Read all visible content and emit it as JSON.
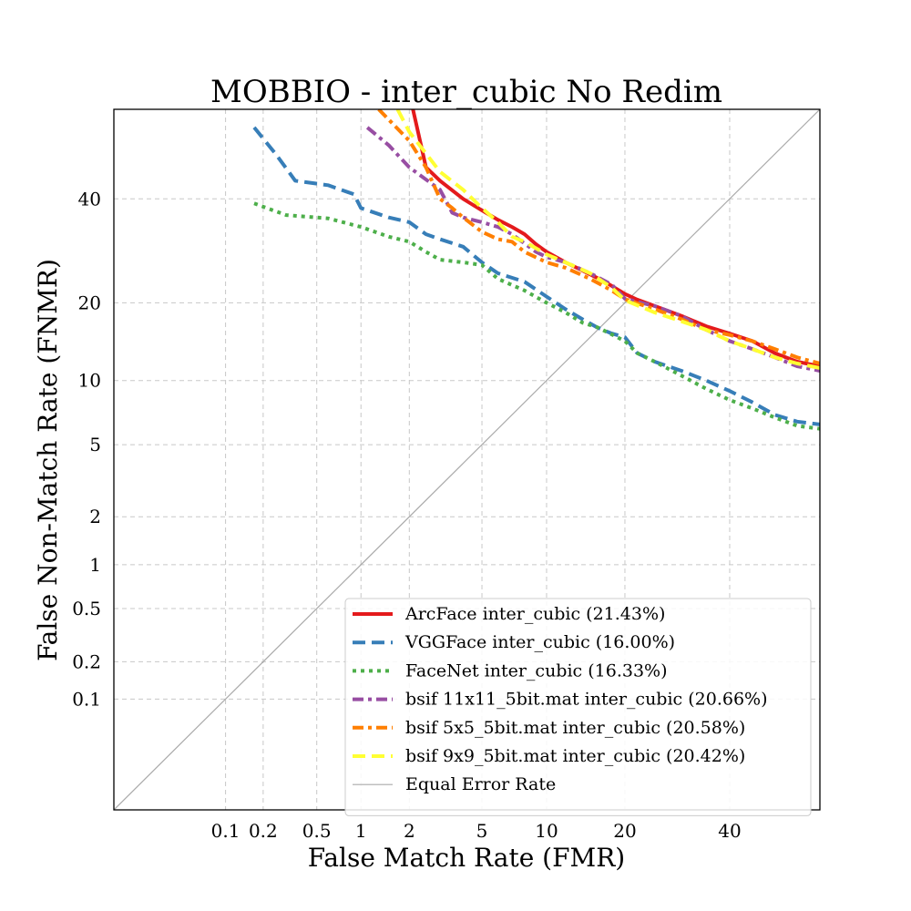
{
  "chart_data": {
    "type": "line",
    "title": "MOBBIO - inter_cubic No Redim",
    "xlabel": "False Match Rate (FMR)",
    "ylabel": "False Non-Match Rate (FNMR)",
    "x_scale": "probit",
    "y_scale": "probit",
    "xlim": [
      0.01,
      60
    ],
    "ylim": [
      0.01,
      60
    ],
    "x_ticks": [
      0.1,
      0.2,
      0.5,
      1,
      2,
      5,
      10,
      20,
      40
    ],
    "x_tick_labels": [
      "0.1",
      "0.2",
      "0.5",
      "1",
      "2",
      "5",
      "10",
      "20",
      "40"
    ],
    "y_ticks": [
      0.1,
      0.2,
      0.5,
      1,
      2,
      5,
      10,
      20,
      40
    ],
    "y_tick_labels": [
      "0.1",
      "0.2",
      "0.5",
      "1",
      "2",
      "5",
      "10",
      "20",
      "40"
    ],
    "grid": true,
    "legend_position": "lower-right",
    "series": [
      {
        "name": "ArcFace inter_cubic (21.43%)",
        "color": "#e41a1c",
        "style": "solid",
        "points": [
          [
            2.1,
            60
          ],
          [
            2.5,
            47
          ],
          [
            3,
            44
          ],
          [
            4,
            40
          ],
          [
            5,
            37.5
          ],
          [
            6,
            35.5
          ],
          [
            7,
            34
          ],
          [
            8,
            32.5
          ],
          [
            9,
            30.5
          ],
          [
            10,
            29
          ],
          [
            12,
            27
          ],
          [
            14,
            25.5
          ],
          [
            17,
            23.5
          ],
          [
            20,
            21.43
          ],
          [
            22,
            20.5
          ],
          [
            25,
            19.5
          ],
          [
            30,
            18
          ],
          [
            35,
            16.5
          ],
          [
            40,
            15.5
          ],
          [
            45,
            14.5
          ],
          [
            50,
            13
          ],
          [
            55,
            12
          ],
          [
            60,
            11.5
          ]
        ]
      },
      {
        "name": "VGGFace inter_cubic (16.00%)",
        "color": "#377eb8",
        "style": "dashed",
        "points": [
          [
            0.17,
            56
          ],
          [
            0.25,
            50
          ],
          [
            0.35,
            44
          ],
          [
            0.6,
            43
          ],
          [
            0.9,
            41
          ],
          [
            1,
            38
          ],
          [
            1.5,
            36
          ],
          [
            2,
            35
          ],
          [
            2.5,
            32.5
          ],
          [
            3,
            31.5
          ],
          [
            4,
            30
          ],
          [
            5,
            27
          ],
          [
            6,
            25
          ],
          [
            8,
            23.5
          ],
          [
            10,
            21
          ],
          [
            12,
            19
          ],
          [
            14,
            17.5
          ],
          [
            16,
            16.3
          ],
          [
            18,
            15.5
          ],
          [
            20,
            15
          ],
          [
            22,
            13
          ],
          [
            25,
            12
          ],
          [
            30,
            11
          ],
          [
            35,
            10
          ],
          [
            40,
            9
          ],
          [
            45,
            8
          ],
          [
            50,
            7
          ],
          [
            55,
            6.5
          ],
          [
            60,
            6.3
          ]
        ]
      },
      {
        "name": "FaceNet inter_cubic (16.33%)",
        "color": "#4daf4a",
        "style": "dotted",
        "points": [
          [
            0.17,
            39
          ],
          [
            0.3,
            36.5
          ],
          [
            0.6,
            35.8
          ],
          [
            1,
            34
          ],
          [
            1.5,
            32
          ],
          [
            2,
            31
          ],
          [
            2.5,
            29
          ],
          [
            3,
            27.5
          ],
          [
            4,
            27
          ],
          [
            5,
            26.5
          ],
          [
            6,
            24
          ],
          [
            8,
            22
          ],
          [
            10,
            20
          ],
          [
            12,
            18.5
          ],
          [
            14,
            17
          ],
          [
            16,
            16.33
          ],
          [
            20,
            14.5
          ],
          [
            22,
            13
          ],
          [
            25,
            12
          ],
          [
            30,
            10.5
          ],
          [
            35,
            9.2
          ],
          [
            40,
            8.2
          ],
          [
            45,
            7.5
          ],
          [
            50,
            6.8
          ],
          [
            55,
            6.2
          ],
          [
            60,
            6
          ]
        ]
      },
      {
        "name": "bsif 11x11_5bit.mat inter_cubic (20.66%)",
        "color": "#984ea3",
        "style": "dashdot",
        "points": [
          [
            1.1,
            56
          ],
          [
            1.5,
            52
          ],
          [
            2,
            47
          ],
          [
            3,
            42
          ],
          [
            3.5,
            37
          ],
          [
            4,
            36
          ],
          [
            5,
            35
          ],
          [
            6,
            34
          ],
          [
            7,
            32.5
          ],
          [
            9,
            29
          ],
          [
            10,
            28
          ],
          [
            12,
            27
          ],
          [
            15,
            25
          ],
          [
            18,
            23
          ],
          [
            20,
            20.66
          ],
          [
            25,
            19.5
          ],
          [
            30,
            18
          ],
          [
            35,
            16
          ],
          [
            40,
            14.5
          ],
          [
            45,
            13.5
          ],
          [
            50,
            12.5
          ],
          [
            55,
            11.5
          ],
          [
            60,
            11
          ]
        ]
      },
      {
        "name": "bsif 5x5_5bit.mat inter_cubic (20.58%)",
        "color": "#ff7f00",
        "style": "dashdot",
        "points": [
          [
            1.3,
            60
          ],
          [
            2,
            53
          ],
          [
            2.5,
            47
          ],
          [
            3,
            40
          ],
          [
            3.5,
            38
          ],
          [
            4,
            36
          ],
          [
            5,
            33
          ],
          [
            6,
            31.5
          ],
          [
            7,
            31
          ],
          [
            8,
            29
          ],
          [
            10,
            27
          ],
          [
            12,
            26
          ],
          [
            15,
            24
          ],
          [
            18,
            22
          ],
          [
            20,
            20.58
          ],
          [
            25,
            19
          ],
          [
            30,
            17.5
          ],
          [
            35,
            16
          ],
          [
            40,
            15.3
          ],
          [
            45,
            14.5
          ],
          [
            50,
            13.5
          ],
          [
            55,
            12.5
          ],
          [
            60,
            11.8
          ]
        ]
      },
      {
        "name": "bsif 9x9_5bit.mat inter_cubic (20.42%)",
        "color": "#ffff33",
        "style": "dashed",
        "points": [
          [
            1.7,
            60
          ],
          [
            2,
            55
          ],
          [
            3,
            46
          ],
          [
            4,
            42
          ],
          [
            5,
            38
          ],
          [
            6,
            35
          ],
          [
            7,
            32
          ],
          [
            8,
            31
          ],
          [
            10,
            28.5
          ],
          [
            12,
            27
          ],
          [
            15,
            25
          ],
          [
            18,
            22.5
          ],
          [
            20,
            20.42
          ],
          [
            25,
            18.5
          ],
          [
            30,
            17.2
          ],
          [
            35,
            16
          ],
          [
            40,
            14.5
          ],
          [
            45,
            13.5
          ],
          [
            50,
            12.5
          ],
          [
            55,
            11.8
          ],
          [
            60,
            11.3
          ]
        ]
      },
      {
        "name": "Equal Error Rate",
        "color": "#aaaaaa",
        "style": "thin",
        "points": [
          [
            0.01,
            0.01
          ],
          [
            60,
            60
          ]
        ]
      }
    ]
  }
}
